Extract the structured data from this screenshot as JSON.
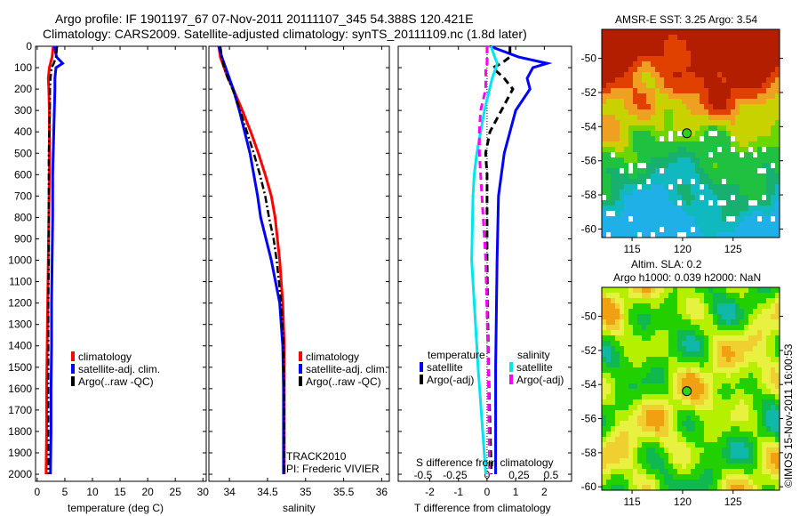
{
  "header": {
    "line1": "Argo profile: IF 1901197_67 07-Nov-2011 20111107_345 54.388S 120.421E",
    "line2": "Climatology: CARS2009. Satellite-adjusted climatology: synTS_20111109.nc (1.8d later)"
  },
  "colors": {
    "climatology": "#ff0000",
    "satellite": "#0000ff",
    "argo": "#000000",
    "sal_satellite": "#00e5ee",
    "sal_argo": "#ff00ff"
  },
  "chart_data": [
    {
      "type": "line",
      "name": "temperature",
      "xlabel": "temperature (deg C)",
      "xlim": [
        -0.3,
        30.6
      ],
      "ylim": [
        2033,
        0
      ],
      "xticks": [
        "0",
        "5",
        "10",
        "15",
        "20",
        "25",
        "30"
      ],
      "xtick_values": [
        0,
        5,
        10,
        15,
        20,
        25,
        30
      ],
      "yticks": [
        "0",
        "100",
        "200",
        "300",
        "400",
        "500",
        "600",
        "700",
        "800",
        "900",
        "1000",
        "1100",
        "1200",
        "1300",
        "1400",
        "1500",
        "1600",
        "1700",
        "1800",
        "1900",
        "2000"
      ],
      "depth": [
        0,
        50,
        80,
        100,
        150,
        200,
        300,
        400,
        500,
        600,
        800,
        1000,
        1200,
        1400,
        1600,
        1800,
        2000
      ],
      "series": [
        {
          "name": "climatology",
          "color": "#ff0000",
          "values": [
            2.9,
            2.7,
            2.4,
            2.2,
            2.0,
            2.1,
            2.2,
            2.2,
            2.2,
            2.2,
            2.1,
            2.0,
            1.9,
            1.8,
            1.7,
            1.7,
            1.6
          ]
        },
        {
          "name": "satellite-adj. clim.",
          "color": "#0000ff",
          "values": [
            3.1,
            3.5,
            4.6,
            3.4,
            3.2,
            3.2,
            3.1,
            3.0,
            2.9,
            2.8,
            2.8,
            2.7,
            2.6,
            2.6,
            2.5,
            2.5,
            2.4
          ]
        },
        {
          "name": "Argo(..raw -QC)",
          "color": "#000000",
          "dash": true,
          "values": [
            3.6,
            3.4,
            3.0,
            2.6,
            2.4,
            2.3,
            2.3,
            2.2,
            2.1,
            2.1,
            2.1,
            2.1,
            2.0,
            2.0,
            2.0,
            2.0,
            2.0
          ]
        }
      ],
      "legend": [
        "climatology",
        "satellite-adj. clim.",
        "Argo(..raw -QC)"
      ]
    },
    {
      "type": "line",
      "name": "salinity",
      "xlabel": "salinity",
      "xlim": [
        33.73,
        36.1
      ],
      "ylim": [
        2033,
        0
      ],
      "xticks": [
        "34",
        "34.5",
        "35",
        "35.5",
        "36"
      ],
      "xtick_values": [
        34,
        34.5,
        35,
        35.5,
        36
      ],
      "depth": [
        0,
        50,
        100,
        150,
        200,
        300,
        400,
        500,
        600,
        700,
        800,
        900,
        1000,
        1200,
        1400,
        1600,
        1800,
        2000
      ],
      "series": [
        {
          "name": "climatology",
          "color": "#ff0000",
          "values": [
            33.86,
            33.88,
            33.93,
            33.98,
            34.05,
            34.17,
            34.28,
            34.38,
            34.47,
            34.55,
            34.6,
            34.63,
            34.66,
            34.7,
            34.72,
            34.72,
            34.72,
            34.72
          ]
        },
        {
          "name": "satellite-adj. clim.",
          "color": "#0000ff",
          "values": [
            33.86,
            33.9,
            33.95,
            34.0,
            34.05,
            34.13,
            34.2,
            34.27,
            34.32,
            34.37,
            34.41,
            34.48,
            34.55,
            34.66,
            34.7,
            34.71,
            34.71,
            34.71
          ]
        },
        {
          "name": "Argo(..raw -QC)",
          "color": "#000000",
          "dash": true,
          "values": [
            33.88,
            33.9,
            33.93,
            33.98,
            34.04,
            34.14,
            34.23,
            34.32,
            34.4,
            34.47,
            34.52,
            34.58,
            34.62,
            34.68,
            34.71,
            34.72,
            34.72,
            34.72
          ]
        }
      ],
      "legend": [
        "climatology",
        "satellite-adj. clim.",
        "Argo(..raw -QC)"
      ],
      "annotation": [
        "TRACK2010",
        "PI: Frederic VIVIER"
      ]
    },
    {
      "type": "line",
      "name": "difference",
      "xlabel": "T difference from climatology",
      "x2label": "S difference from climatology",
      "xlim": [
        -3.1,
        2.95
      ],
      "x2lim": [
        -0.5,
        0.5
      ],
      "ylim": [
        2033,
        0
      ],
      "xticks": [
        "-2",
        "-1",
        "0",
        "1",
        "2"
      ],
      "xtick_values": [
        -2,
        -1,
        0,
        1,
        2
      ],
      "x2ticks": [
        "-0.5",
        "-0.25",
        "0",
        "0.25",
        "0.5"
      ],
      "x2tick_values": [
        -0.5,
        -0.25,
        0,
        0.25,
        0.5
      ],
      "depth": [
        0,
        50,
        80,
        100,
        150,
        200,
        300,
        400,
        500,
        600,
        700,
        1000,
        1500,
        2000
      ],
      "series": [
        {
          "name": "temperature satellite",
          "axis": "T",
          "color": "#0000ff",
          "values": [
            0.1,
            1.1,
            2.1,
            1.6,
            1.4,
            1.5,
            1.0,
            0.8,
            0.6,
            0.5,
            0.4,
            0.35,
            0.3,
            0.3
          ]
        },
        {
          "name": "temperature Argo(-adj)",
          "axis": "T",
          "color": "#000000",
          "dash": true,
          "values": [
            0.8,
            0.8,
            0.5,
            0.2,
            0.6,
            0.9,
            0.5,
            0.1,
            -0.05,
            0,
            0,
            0,
            0.05,
            0.15
          ]
        },
        {
          "name": "salinity satellite",
          "axis": "S",
          "color": "#00e5ee",
          "values": [
            0.03,
            0.06,
            0.08,
            0.07,
            0.04,
            0.02,
            -0.02,
            -0.05,
            -0.08,
            -0.1,
            -0.11,
            -0.12,
            -0.07,
            -0.01
          ]
        },
        {
          "name": "salinity Argo(-adj)",
          "axis": "S",
          "color": "#ff00ff",
          "dash": true,
          "values": [
            0,
            0,
            0,
            -0.01,
            -0.01,
            -0.01,
            -0.05,
            -0.06,
            -0.06,
            -0.05,
            -0.04,
            -0.01,
            0.01,
            0.02
          ]
        }
      ],
      "legend": {
        "temperature_title": "temperature",
        "salinity_title": "salinity",
        "temp_items": [
          "satellite",
          "Argo(-adj)"
        ],
        "sal_items": [
          "satellite",
          "Argo(-adj)"
        ]
      }
    },
    {
      "type": "heatmap",
      "name": "sst-map",
      "title": "AMSR-E SST: 3.25 Argo: 3.54",
      "xlim": [
        112,
        129.6
      ],
      "ylim": [
        -60.5,
        -48.3
      ],
      "xticks": [
        "115",
        "120",
        "125"
      ],
      "xtick_values": [
        115,
        120,
        125
      ],
      "yticks": [
        "-50",
        "-52",
        "-54",
        "-56",
        "-58",
        "-60"
      ],
      "ytick_values": [
        -50,
        -52,
        -54,
        -56,
        -58,
        -60
      ],
      "point": {
        "lon": 120.421,
        "lat": -54.388
      }
    },
    {
      "type": "heatmap",
      "name": "sla-map",
      "title": "Altim. SLA: 0.2",
      "subtitle": "Argo h1000: 0.039 h2000: NaN",
      "xlim": [
        112,
        129.6
      ],
      "ylim": [
        -60.2,
        -48.3
      ],
      "xticks": [
        "115",
        "120",
        "125"
      ],
      "xtick_values": [
        115,
        120,
        125
      ],
      "yticks": [
        "-50",
        "-52",
        "-54",
        "-56",
        "-58",
        "-60"
      ],
      "ytick_values": [
        -50,
        -52,
        -54,
        -56,
        -58,
        -60
      ],
      "point": {
        "lon": 120.421,
        "lat": -54.388
      }
    }
  ],
  "footer": {
    "credit": "©IMOS 15-Nov-2011 16:00:53"
  }
}
